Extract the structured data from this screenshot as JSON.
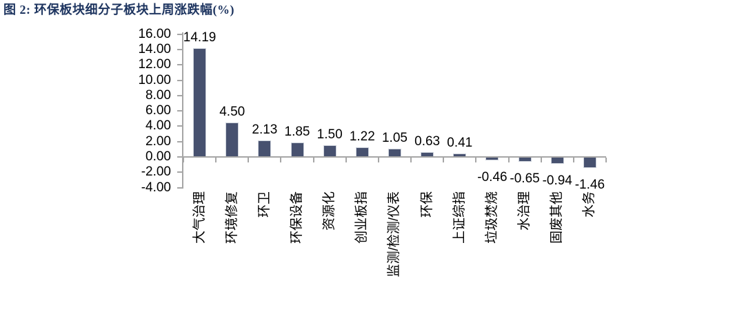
{
  "figure": {
    "title": "图 2: 环保板块细分子板块上周涨跌幅(%)"
  },
  "colors": {
    "title_text": "#1E3560",
    "page_background": "#FFFFFF",
    "chart_background": "#FFFFFF"
  },
  "chart_data": {
    "type": "bar",
    "title": "环保板块细分子板块上周涨跌幅(%)",
    "categories": [
      "大气治理",
      "环境修复",
      "环卫",
      "环保设备",
      "资源化",
      "创业板指",
      "监测/检测/仪表",
      "环保",
      "上证综指",
      "垃圾焚烧",
      "水治理",
      "固废其他",
      "水务"
    ],
    "values": [
      14.19,
      4.5,
      2.13,
      1.85,
      1.5,
      1.22,
      1.05,
      0.63,
      0.41,
      -0.46,
      -0.65,
      -0.94,
      -1.46
    ],
    "value_labels": [
      "14.19",
      "4.50",
      "2.13",
      "1.85",
      "1.50",
      "1.22",
      "1.05",
      "0.63",
      "0.41",
      "-0.46",
      "-0.65",
      "-0.94",
      "-1.46"
    ],
    "xlabel": "",
    "ylabel": "",
    "ylim": [
      -4,
      16
    ],
    "ytick_step": 2,
    "ytick_labels": [
      "16.00",
      "14.00",
      "12.00",
      "10.00",
      "8.00",
      "6.00",
      "4.00",
      "2.00",
      "0.00",
      "-2.00",
      "-4.00"
    ],
    "grid": false,
    "legend": "none",
    "x_labels_rotated_degrees": 90,
    "bar_color": "#47516F",
    "bar_border_color": "#CDD2DB",
    "axis_color": "#A6A6A6",
    "text_color": "#000000"
  }
}
